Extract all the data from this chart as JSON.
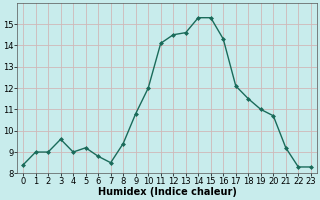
{
  "x": [
    0,
    1,
    2,
    3,
    4,
    5,
    6,
    7,
    8,
    9,
    10,
    11,
    12,
    13,
    14,
    15,
    16,
    17,
    18,
    19,
    20,
    21,
    22,
    23
  ],
  "y": [
    8.4,
    9.0,
    9.0,
    9.6,
    9.0,
    9.2,
    8.8,
    8.5,
    9.4,
    10.8,
    12.0,
    14.1,
    14.5,
    14.6,
    15.3,
    15.3,
    14.3,
    12.1,
    11.5,
    11.0,
    10.7,
    9.2,
    8.3,
    8.3
  ],
  "line_color": "#1a6b5a",
  "marker": "D",
  "marker_size": 2.0,
  "bg_color": "#c8ecec",
  "grid_color": "#d0b8b8",
  "xlabel": "Humidex (Indice chaleur)",
  "xlabel_fontsize": 7,
  "xlabel_weight": "bold",
  "ylim": [
    8,
    16
  ],
  "xlim": [
    -0.5,
    23.5
  ],
  "yticks": [
    8,
    9,
    10,
    11,
    12,
    13,
    14,
    15
  ],
  "xticks": [
    0,
    1,
    2,
    3,
    4,
    5,
    6,
    7,
    8,
    9,
    10,
    11,
    12,
    13,
    14,
    15,
    16,
    17,
    18,
    19,
    20,
    21,
    22,
    23
  ],
  "tick_fontsize": 6,
  "linewidth": 1.0
}
